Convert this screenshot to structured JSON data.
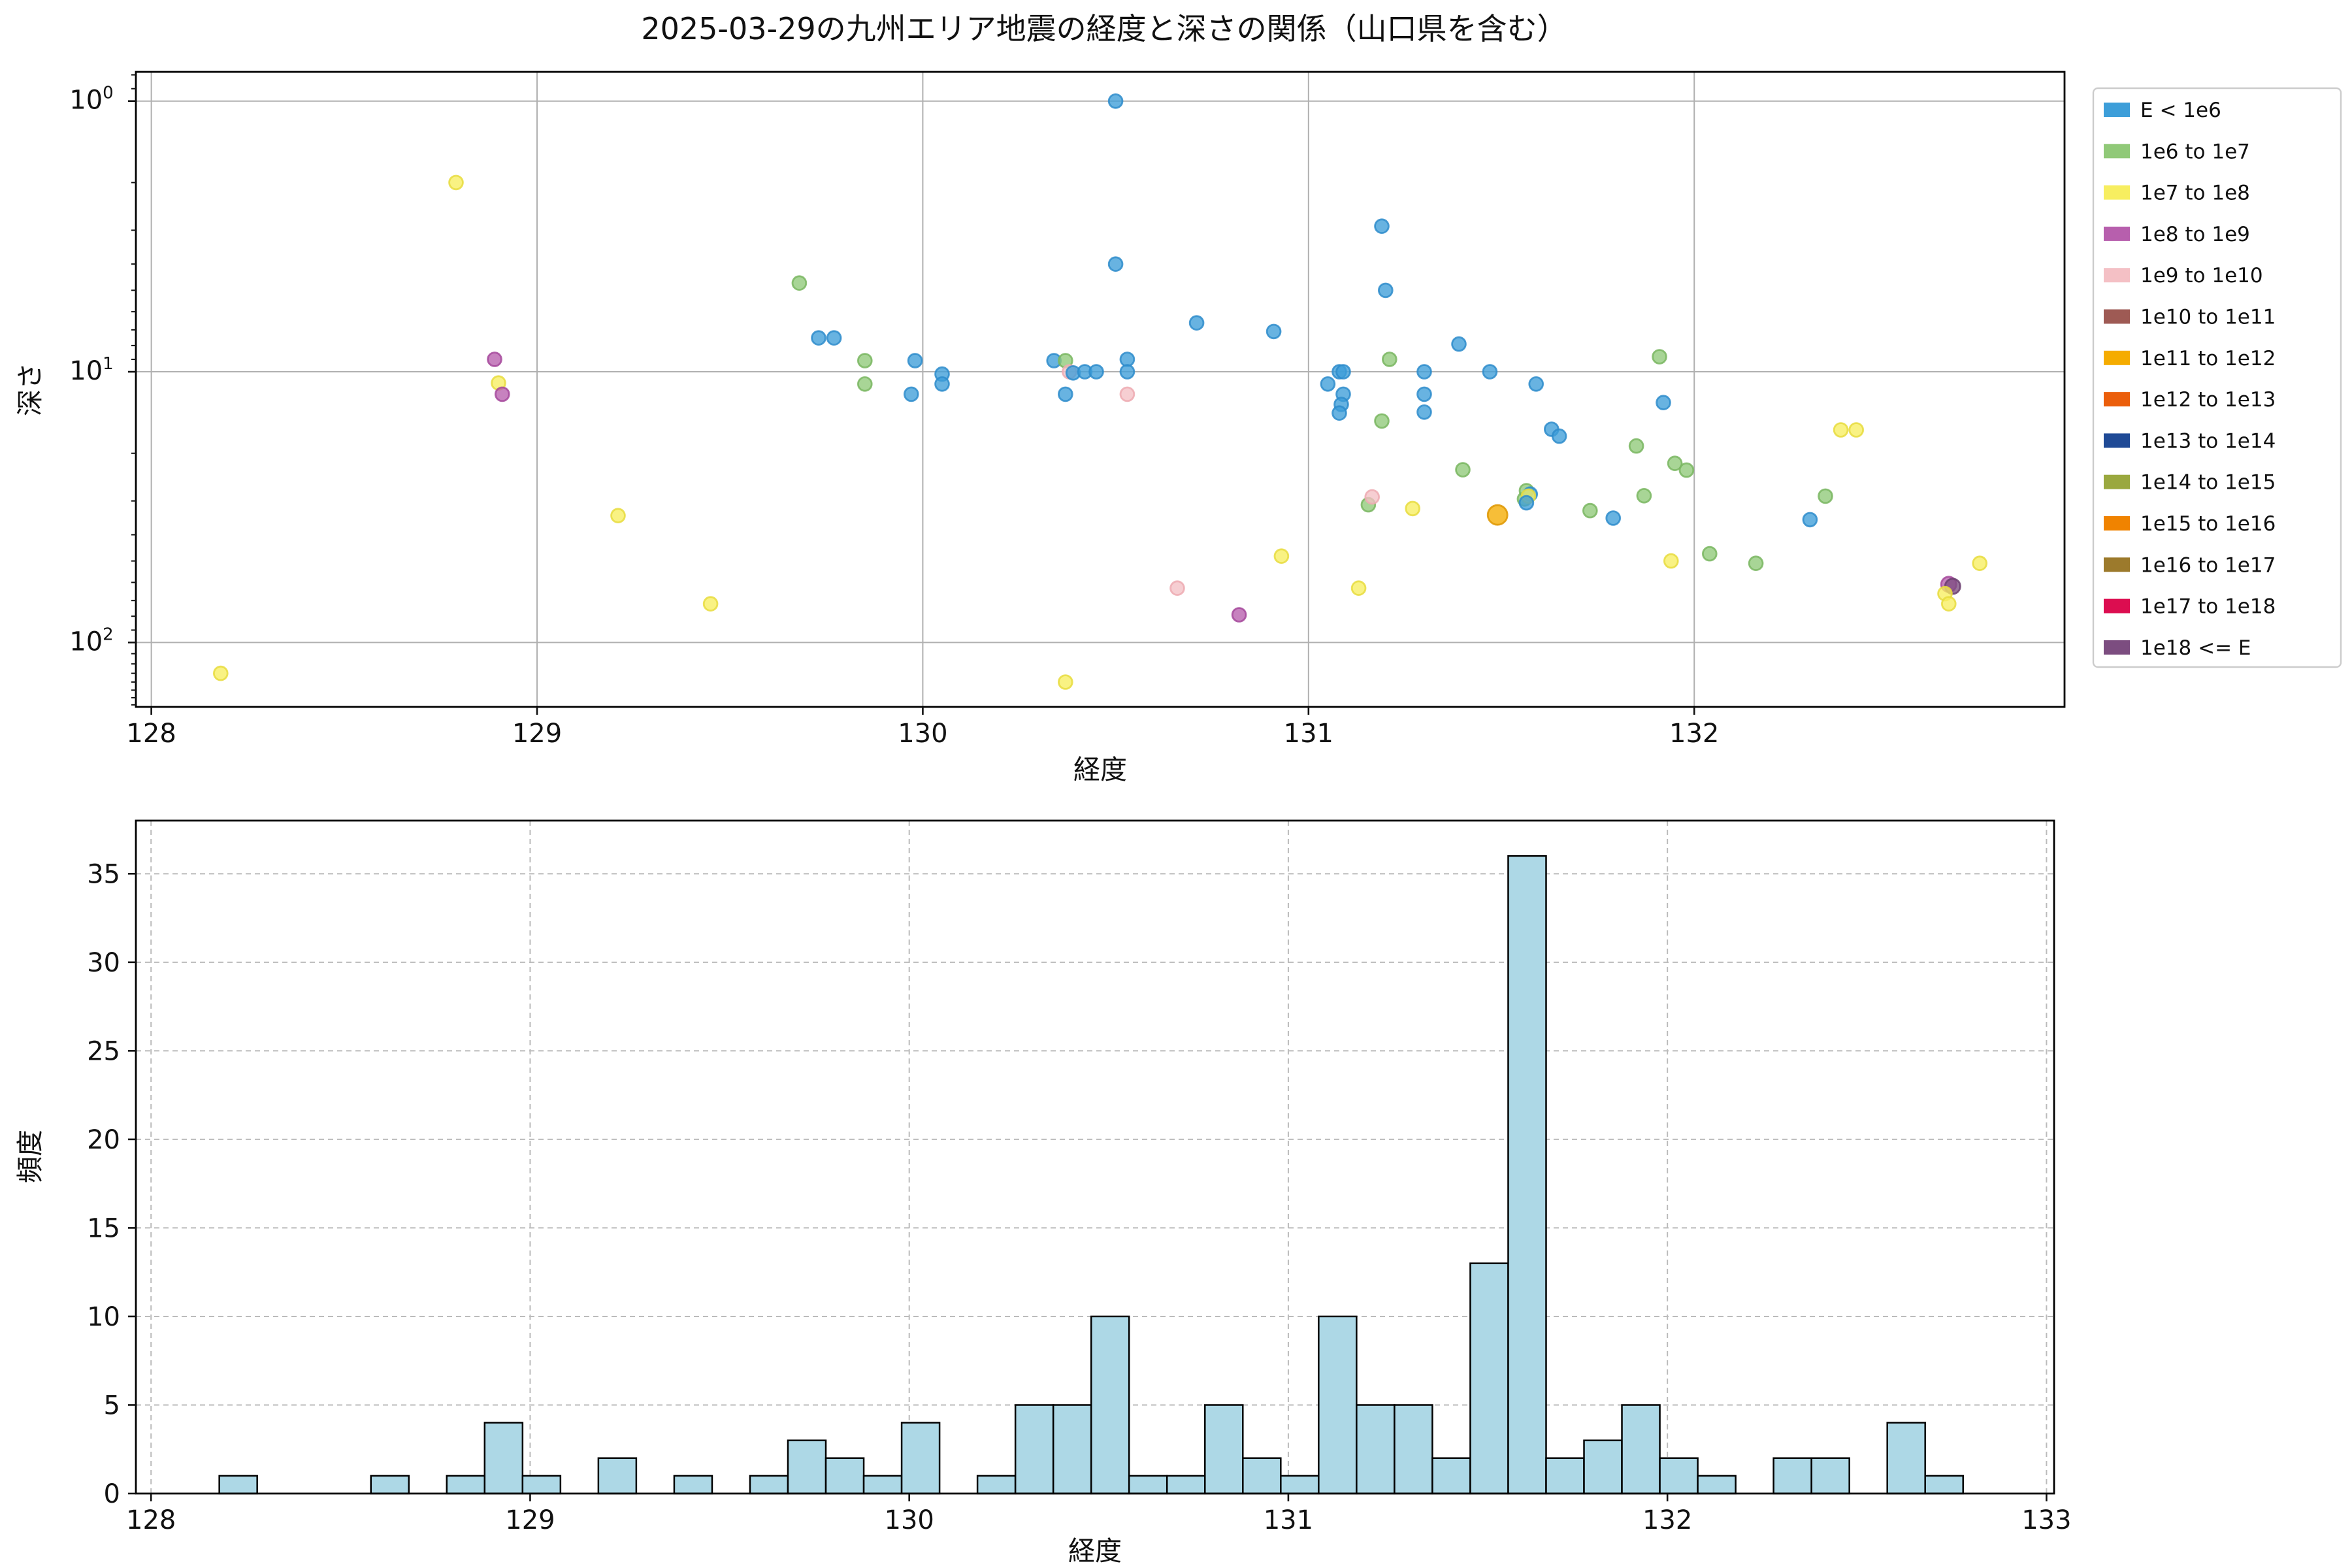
{
  "title": "2025-03-29の九州エリア地震の経度と深さの関係（山口県を含む）",
  "palette": {
    "b": {
      "label": "E < 1e6",
      "fill": "#3d9ed9",
      "edge": "#2e8ccb"
    },
    "g": {
      "label": "1e6 to 1e7",
      "fill": "#90c978",
      "edge": "#79b660"
    },
    "y": {
      "label": "1e7 to 1e8",
      "fill": "#f7ee60",
      "edge": "#e8dc3e"
    },
    "m": {
      "label": "1e8 to 1e9",
      "fill": "#b75fad",
      "edge": "#a5489b"
    },
    "p": {
      "label": "1e9 to 1e10",
      "fill": "#f4c0c5",
      "edge": "#edaab2"
    },
    "br": {
      "label": "1e10 to 1e11",
      "fill": "#9e5a54",
      "edge": "#8c4a45"
    },
    "a": {
      "label": "1e11 to 1e12",
      "fill": "#f5ac00",
      "edge": "#de9700"
    },
    "o": {
      "label": "1e12 to 1e13",
      "fill": "#eb5e0b",
      "edge": "#d44f05"
    },
    "n": {
      "label": "1e13 to 1e14",
      "fill": "#1f4a96",
      "edge": "#173c7e"
    },
    "ol": {
      "label": "1e14 to 1e15",
      "fill": "#9aa83f",
      "edge": "#879434"
    },
    "o2": {
      "label": "1e15 to 1e16",
      "fill": "#f08300",
      "edge": "#d87400"
    },
    "bo": {
      "label": "1e16 to 1e17",
      "fill": "#9c7a2c",
      "edge": "#8a6a24"
    },
    "cr": {
      "label": "1e17 to 1e18",
      "fill": "#dc0d50",
      "edge": "#c00a44"
    },
    "u": {
      "label": "1e18 <= E",
      "fill": "#7c4d80",
      "edge": "#6b3e70"
    }
  },
  "legend": {
    "entries": [
      {
        "key": "b",
        "label": "E < 1e6"
      },
      {
        "key": "g",
        "label": "1e6 to 1e7"
      },
      {
        "key": "y",
        "label": "1e7 to 1e8"
      },
      {
        "key": "m",
        "label": "1e8 to 1e9"
      },
      {
        "key": "p",
        "label": "1e9 to 1e10"
      },
      {
        "key": "br",
        "label": "1e10 to 1e11"
      },
      {
        "key": "a",
        "label": "1e11 to 1e12"
      },
      {
        "key": "o",
        "label": "1e12 to 1e13"
      },
      {
        "key": "n",
        "label": "1e13 to 1e14"
      },
      {
        "key": "ol",
        "label": "1e14 to 1e15"
      },
      {
        "key": "o2",
        "label": "1e15 to 1e16"
      },
      {
        "key": "bo",
        "label": "1e16 to 1e17"
      },
      {
        "key": "cr",
        "label": "1e17 to 1e18"
      },
      {
        "key": "u",
        "label": "1e18 <= E"
      }
    ]
  },
  "chart_data": [
    {
      "type": "scatter",
      "title": "2025-03-29の九州エリア地震の経度と深さの関係（山口県を含む）",
      "xlabel": "経度",
      "ylabel": "深さ",
      "xlim": [
        127.96,
        132.96
      ],
      "ylim_depth_log_inverted": [
        0.78,
        173
      ],
      "xticks": [
        128,
        129,
        130,
        131,
        132
      ],
      "yticks": [
        {
          "v": 1,
          "exp": 0
        },
        {
          "v": 10,
          "exp": 1
        },
        {
          "v": 100,
          "exp": 2
        }
      ],
      "yticks_minor": [
        0.8,
        0.9,
        2,
        3,
        4,
        5,
        6,
        7,
        8,
        9,
        20,
        30,
        40,
        50,
        60,
        70,
        80,
        90,
        110,
        120,
        130,
        140,
        150,
        160,
        170
      ],
      "grid": "solid, major only",
      "legend_position": "outside upper right",
      "points": [
        {
          "x": 128.18,
          "d": 130,
          "c": "y"
        },
        {
          "x": 128.79,
          "d": 2.0,
          "c": "y"
        },
        {
          "x": 128.89,
          "d": 9.0,
          "c": "m"
        },
        {
          "x": 128.9,
          "d": 11.0,
          "c": "y"
        },
        {
          "x": 128.91,
          "d": 12.1,
          "c": "m"
        },
        {
          "x": 129.21,
          "d": 34,
          "c": "y"
        },
        {
          "x": 129.45,
          "d": 72,
          "c": "y"
        },
        {
          "x": 129.68,
          "d": 4.7,
          "c": "g"
        },
        {
          "x": 129.73,
          "d": 7.5,
          "c": "b"
        },
        {
          "x": 129.77,
          "d": 7.5,
          "c": "b"
        },
        {
          "x": 129.85,
          "d": 9.1,
          "c": "g"
        },
        {
          "x": 129.85,
          "d": 11.1,
          "c": "g"
        },
        {
          "x": 129.98,
          "d": 9.1,
          "c": "b"
        },
        {
          "x": 129.97,
          "d": 12.1,
          "c": "b"
        },
        {
          "x": 130.05,
          "d": 10.2,
          "c": "b"
        },
        {
          "x": 130.05,
          "d": 11.1,
          "c": "b"
        },
        {
          "x": 130.34,
          "d": 9.1,
          "c": "b"
        },
        {
          "x": 130.37,
          "d": 9.1,
          "c": "g"
        },
        {
          "x": 130.38,
          "d": 10.0,
          "c": "p"
        },
        {
          "x": 130.39,
          "d": 10.1,
          "c": "b"
        },
        {
          "x": 130.42,
          "d": 10.0,
          "c": "b"
        },
        {
          "x": 130.45,
          "d": 10.0,
          "c": "b"
        },
        {
          "x": 130.5,
          "d": 1.0,
          "c": "b"
        },
        {
          "x": 130.5,
          "d": 4.0,
          "c": "b"
        },
        {
          "x": 130.53,
          "d": 9.0,
          "c": "b"
        },
        {
          "x": 130.53,
          "d": 10.0,
          "c": "b"
        },
        {
          "x": 130.53,
          "d": 12.1,
          "c": "p"
        },
        {
          "x": 130.37,
          "d": 12.1,
          "c": "b"
        },
        {
          "x": 130.37,
          "d": 140,
          "c": "y"
        },
        {
          "x": 130.66,
          "d": 63,
          "c": "p"
        },
        {
          "x": 130.71,
          "d": 6.6,
          "c": "b"
        },
        {
          "x": 130.82,
          "d": 79,
          "c": "m"
        },
        {
          "x": 130.91,
          "d": 7.1,
          "c": "b"
        },
        {
          "x": 130.93,
          "d": 48,
          "c": "y"
        },
        {
          "x": 131.05,
          "d": 11.1,
          "c": "b"
        },
        {
          "x": 131.08,
          "d": 10.0,
          "c": "b"
        },
        {
          "x": 131.09,
          "d": 10.0,
          "c": "b"
        },
        {
          "x": 131.09,
          "d": 12.1,
          "c": "b"
        },
        {
          "x": 131.085,
          "d": 13.2,
          "c": "b"
        },
        {
          "x": 131.08,
          "d": 14.2,
          "c": "b"
        },
        {
          "x": 131.13,
          "d": 63,
          "c": "y"
        },
        {
          "x": 131.155,
          "d": 31,
          "c": "g"
        },
        {
          "x": 131.165,
          "d": 29,
          "c": "p"
        },
        {
          "x": 131.19,
          "d": 15.2,
          "c": "g"
        },
        {
          "x": 131.2,
          "d": 5.0,
          "c": "b"
        },
        {
          "x": 131.19,
          "d": 2.9,
          "c": "b"
        },
        {
          "x": 131.21,
          "d": 9.0,
          "c": "g"
        },
        {
          "x": 131.27,
          "d": 32,
          "c": "y"
        },
        {
          "x": 131.3,
          "d": 10.0,
          "c": "b"
        },
        {
          "x": 131.3,
          "d": 12.1,
          "c": "b"
        },
        {
          "x": 131.3,
          "d": 14.1,
          "c": "b"
        },
        {
          "x": 131.39,
          "d": 7.9,
          "c": "b"
        },
        {
          "x": 131.4,
          "d": 23,
          "c": "g"
        },
        {
          "x": 131.47,
          "d": 10.0,
          "c": "b"
        },
        {
          "x": 131.49,
          "d": 33.8,
          "c": "a",
          "r": 7.5
        },
        {
          "x": 131.56,
          "d": 29.5,
          "c": "g"
        },
        {
          "x": 131.565,
          "d": 27.5,
          "c": "g"
        },
        {
          "x": 131.575,
          "d": 28.3,
          "c": "b"
        },
        {
          "x": 131.57,
          "d": 28.8,
          "c": "y"
        },
        {
          "x": 131.565,
          "d": 30.5,
          "c": "b"
        },
        {
          "x": 131.59,
          "d": 11.1,
          "c": "b"
        },
        {
          "x": 131.63,
          "d": 16.3,
          "c": "b"
        },
        {
          "x": 131.65,
          "d": 17.3,
          "c": "b"
        },
        {
          "x": 131.73,
          "d": 32.6,
          "c": "g"
        },
        {
          "x": 131.79,
          "d": 34.7,
          "c": "b"
        },
        {
          "x": 131.85,
          "d": 18.8,
          "c": "g"
        },
        {
          "x": 131.87,
          "d": 28.7,
          "c": "g"
        },
        {
          "x": 131.91,
          "d": 8.8,
          "c": "g"
        },
        {
          "x": 131.92,
          "d": 13.0,
          "c": "b"
        },
        {
          "x": 131.95,
          "d": 21.8,
          "c": "g"
        },
        {
          "x": 131.98,
          "d": 23.1,
          "c": "g"
        },
        {
          "x": 131.94,
          "d": 50,
          "c": "y"
        },
        {
          "x": 132.04,
          "d": 47,
          "c": "g"
        },
        {
          "x": 132.16,
          "d": 51,
          "c": "g"
        },
        {
          "x": 132.3,
          "d": 35.2,
          "c": "b"
        },
        {
          "x": 132.34,
          "d": 28.8,
          "c": "g"
        },
        {
          "x": 132.38,
          "d": 16.4,
          "c": "y"
        },
        {
          "x": 132.42,
          "d": 16.4,
          "c": "y"
        },
        {
          "x": 132.66,
          "d": 61,
          "c": "m",
          "r": 5.8
        },
        {
          "x": 132.67,
          "d": 62,
          "c": "u",
          "r": 5.8
        },
        {
          "x": 132.65,
          "d": 66,
          "c": "y"
        },
        {
          "x": 132.66,
          "d": 72,
          "c": "y"
        },
        {
          "x": 132.74,
          "d": 51,
          "c": "y"
        }
      ]
    },
    {
      "type": "bar",
      "subtype": "histogram",
      "xlabel": "経度",
      "ylabel": "頻度",
      "xlim": [
        127.96,
        133.02
      ],
      "ylim": [
        0,
        38
      ],
      "xticks": [
        128,
        129,
        130,
        131,
        132,
        133
      ],
      "yticks": [
        0,
        5,
        10,
        15,
        20,
        25,
        30,
        35
      ],
      "grid": "dashed, both axes",
      "bar_fill": "#add8e6",
      "bar_edge": "#000000",
      "bin_start": 128.18,
      "bin_width": 0.1,
      "values": [
        1,
        0,
        0,
        0,
        1,
        0,
        1,
        4,
        1,
        0,
        2,
        0,
        1,
        0,
        1,
        3,
        2,
        1,
        4,
        0,
        1,
        5,
        5,
        10,
        1,
        1,
        5,
        2,
        1,
        10,
        5,
        5,
        2,
        13,
        36,
        2,
        3,
        5,
        2,
        1,
        0,
        2,
        2,
        0,
        4,
        1
      ]
    }
  ]
}
